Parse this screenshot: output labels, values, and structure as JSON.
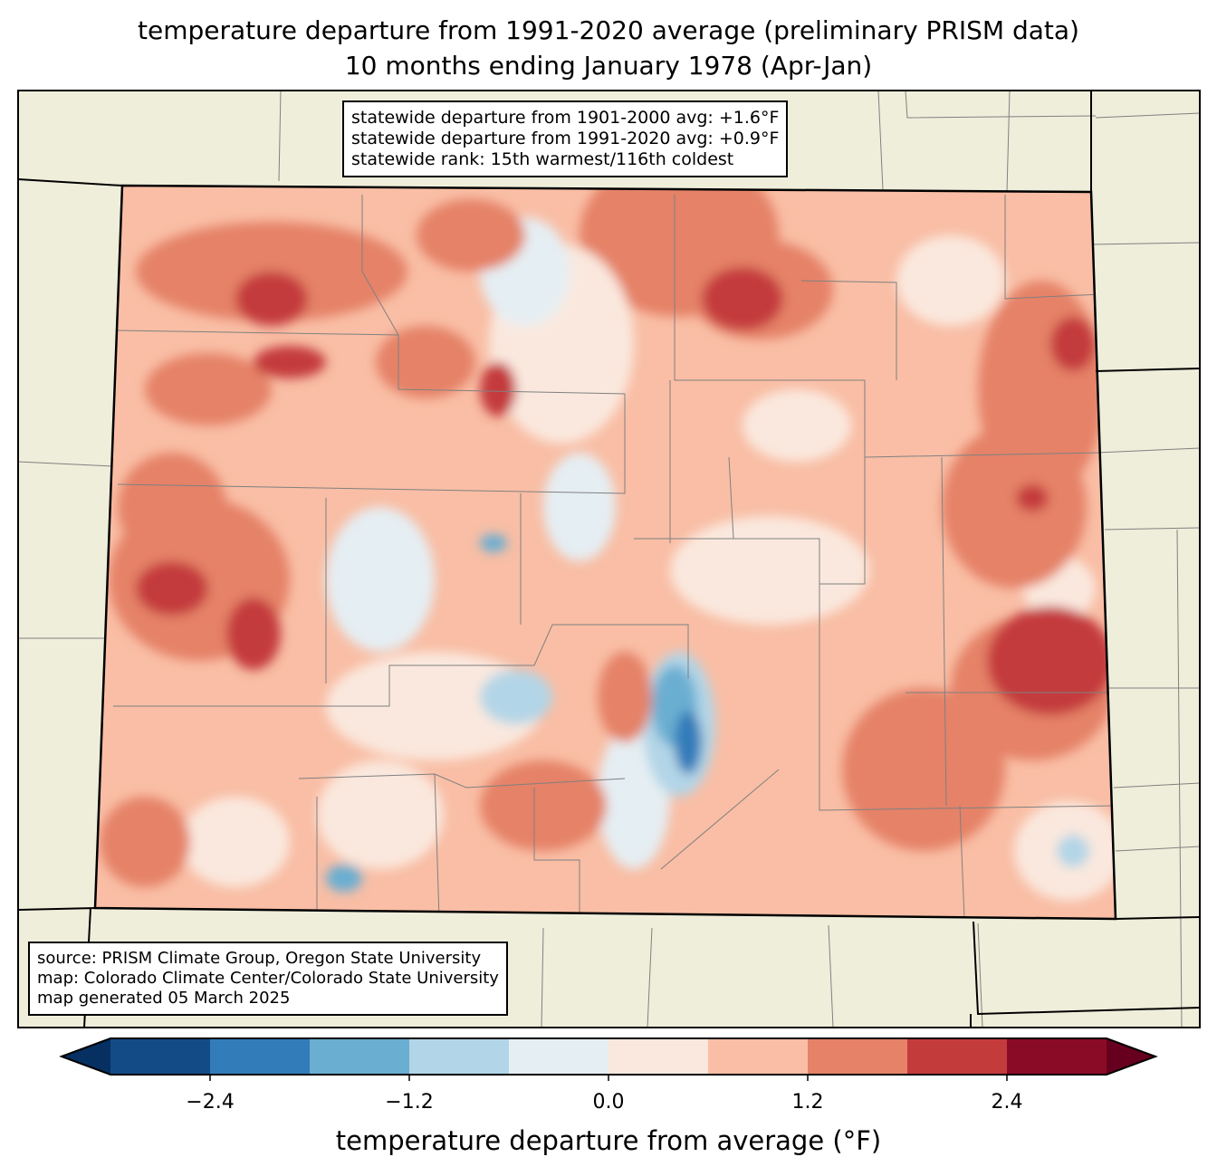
{
  "title": {
    "line1": "temperature departure from 1991-2020 average (preliminary PRISM data)",
    "line2": "10 months ending January 1978 (Apr-Jan)"
  },
  "stats_box": {
    "line1": "statewide departure from 1901-2000 avg: +1.6°F",
    "line2": "statewide departure from 1991-2020 avg: +0.9°F",
    "line3": "statewide rank: 15th warmest/116th coldest"
  },
  "source_box": {
    "line1": "source: PRISM Climate Group, Oregon State University",
    "line2": "map: Colorado Climate Center/Colorado State University",
    "line3": "map generated 05 March 2025"
  },
  "colorbar": {
    "label": "temperature departure from average (°F)",
    "range": [
      -3.0,
      3.0
    ],
    "levels": [
      -3.0,
      -2.4,
      -1.8,
      -1.2,
      -0.6,
      0.0,
      0.6,
      1.2,
      1.8,
      2.4,
      3.0
    ],
    "colors": [
      "#134b87",
      "#327cb9",
      "#6aaed1",
      "#b2d5e7",
      "#e5eef3",
      "#fae8de",
      "#f9bea5",
      "#e58268",
      "#c43b3c",
      "#8a0b25"
    ],
    "under_color": "#053061",
    "over_color": "#67001f",
    "ticks": [
      {
        "value": -2.4,
        "label": "−2.4"
      },
      {
        "value": -1.2,
        "label": "−1.2"
      },
      {
        "value": 0.0,
        "label": "0.0"
      },
      {
        "value": 1.2,
        "label": "1.2"
      },
      {
        "value": 2.4,
        "label": "2.4"
      }
    ]
  },
  "colors": {
    "land": "#efeedb",
    "county_lines": "#808080"
  }
}
